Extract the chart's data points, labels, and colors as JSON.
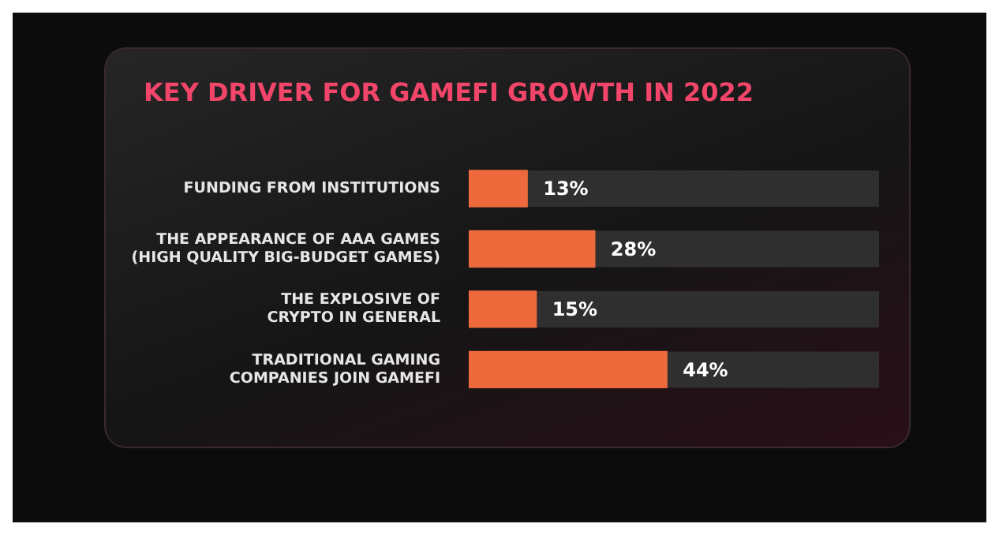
{
  "chart_data": {
    "type": "bar",
    "orientation": "horizontal",
    "title": "KEY DRIVER FOR GAMEFI GROWTH IN 2022",
    "categories": [
      "FUNDING FROM INSTITUTIONS",
      "THE APPEARANCE OF AAA GAMES (HIGH QUALITY BIG-BUDGET GAMES)",
      "THE EXPLOSIVE OF CRYPTO IN GENERAL",
      "TRADITIONAL GAMING COMPANIES JOIN GAMEFI"
    ],
    "values": [
      13,
      28,
      15,
      44
    ],
    "value_labels": [
      "13%",
      "28%",
      "15%",
      "44%"
    ],
    "color": "#ee6a3c",
    "legend": false
  }
}
